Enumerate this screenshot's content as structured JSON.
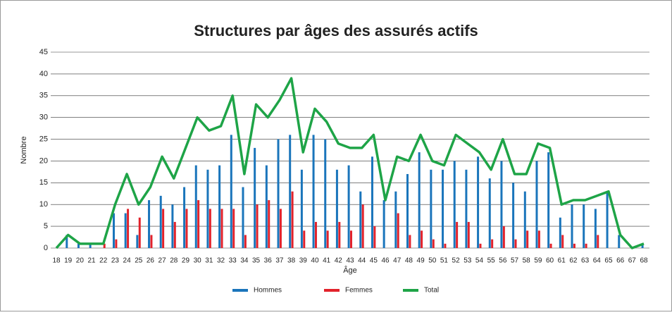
{
  "chart_data": {
    "type": "bar_line",
    "title": "Structures par âges des assurés actifs",
    "x_label": "Âge",
    "y_label": "Nombre",
    "categories": [
      "18",
      "19",
      "20",
      "21",
      "22",
      "23",
      "24",
      "25",
      "26",
      "27",
      "28",
      "29",
      "30",
      "31",
      "32",
      "33",
      "34",
      "35",
      "36",
      "37",
      "38",
      "39",
      "40",
      "41",
      "42",
      "43",
      "44",
      "45",
      "46",
      "47",
      "48",
      "49",
      "50",
      "51",
      "52",
      "53",
      "54",
      "55",
      "56",
      "57",
      "58",
      "59",
      "60",
      "61",
      "62",
      "63",
      "64",
      "65",
      "66",
      "67",
      "68"
    ],
    "series": [
      {
        "name": "Hommes",
        "type": "bar",
        "color": "#1a75bb",
        "values": [
          0,
          3,
          1,
          1,
          0,
          8,
          8,
          3,
          11,
          12,
          10,
          14,
          19,
          18,
          19,
          26,
          14,
          23,
          19,
          25,
          26,
          18,
          26,
          25,
          18,
          19,
          13,
          21,
          11,
          13,
          17,
          22,
          18,
          18,
          20,
          18,
          21,
          16,
          20,
          15,
          13,
          20,
          22,
          7,
          10,
          10,
          9,
          13,
          3,
          0,
          1
        ]
      },
      {
        "name": "Femmes",
        "type": "bar",
        "color": "#e2222b",
        "values": [
          0,
          0,
          0,
          0,
          1,
          2,
          9,
          7,
          3,
          9,
          6,
          9,
          11,
          9,
          9,
          9,
          3,
          10,
          11,
          9,
          13,
          4,
          6,
          4,
          6,
          4,
          10,
          5,
          0,
          8,
          3,
          4,
          2,
          1,
          6,
          6,
          1,
          2,
          5,
          2,
          4,
          4,
          1,
          3,
          1,
          1,
          3,
          0,
          0,
          0,
          0
        ]
      },
      {
        "name": "Total",
        "type": "line",
        "color": "#1ea447",
        "values": [
          0,
          3,
          1,
          1,
          1,
          10,
          17,
          10,
          14,
          21,
          16,
          23,
          30,
          27,
          28,
          35,
          17,
          33,
          30,
          34,
          39,
          22,
          32,
          29,
          24,
          23,
          23,
          26,
          11,
          21,
          20,
          26,
          20,
          19,
          26,
          24,
          22,
          18,
          25,
          17,
          17,
          24,
          23,
          10,
          11,
          11,
          12,
          13,
          3,
          0,
          1
        ]
      }
    ],
    "ylim": [
      0,
      45
    ],
    "yticks": [
      0,
      5,
      10,
      15,
      20,
      25,
      30,
      35,
      40,
      45
    ],
    "grid": true,
    "legend": "bottom"
  }
}
